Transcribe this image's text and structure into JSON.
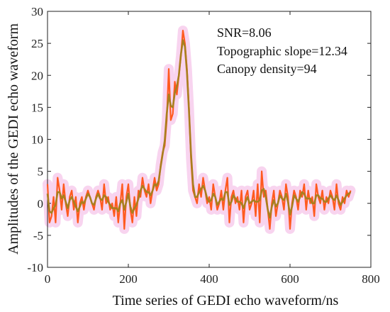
{
  "chart_data": {
    "type": "line",
    "title": "",
    "xlabel": "Time series of GEDI echo waveform/ns",
    "ylabel": "Amplitudes of the GEDI echo waveform",
    "xlim": [
      0,
      800
    ],
    "ylim": [
      -10,
      30
    ],
    "xticks": [
      0,
      200,
      400,
      600,
      800
    ],
    "yticks": [
      -10,
      -5,
      0,
      5,
      10,
      15,
      20,
      25,
      30
    ],
    "grid": false,
    "annotations": [
      "SNR=8.06",
      "Topographic slope=12.34",
      "Canopy density=94"
    ],
    "colors": {
      "raw": "#ff5a1f",
      "smoothed": "#a97f1e",
      "band": "#f5c6ea"
    },
    "series": [
      {
        "x": [
          0,
          5,
          10,
          15,
          20,
          25,
          30,
          35,
          40,
          45,
          50,
          55,
          60,
          65,
          70,
          75,
          80,
          85,
          90,
          95,
          100,
          105,
          110,
          115,
          120,
          125,
          130,
          135,
          140,
          145,
          150,
          155,
          160,
          165,
          170,
          175,
          180,
          185,
          190,
          195,
          200,
          205,
          210,
          215,
          220,
          225,
          230,
          235,
          240,
          245,
          250,
          255,
          260,
          265,
          270,
          275,
          280,
          285,
          290,
          295,
          300,
          305,
          310,
          315,
          320,
          325,
          330,
          335,
          340,
          345,
          350,
          355,
          360,
          365,
          370,
          375,
          380,
          385,
          390,
          395,
          400,
          405,
          410,
          415,
          420,
          425,
          430,
          435,
          440,
          445,
          450,
          455,
          460,
          465,
          470,
          475,
          480,
          485,
          490,
          495,
          500,
          505,
          510,
          515,
          520,
          525,
          530,
          535,
          540,
          545,
          550,
          555,
          560,
          565,
          570,
          575,
          580,
          585,
          590,
          595,
          600,
          605,
          610,
          615,
          620,
          625,
          630,
          635,
          640,
          645,
          650,
          655,
          660,
          665,
          670,
          675,
          680,
          685,
          690,
          695,
          700,
          705,
          710,
          715,
          720,
          725,
          730,
          735,
          740,
          745,
          750
        ],
        "y": [
          3,
          -3,
          -2,
          1,
          -3,
          4,
          2,
          -1,
          3,
          0,
          -2,
          1,
          2,
          -1,
          1,
          -3,
          0,
          1,
          -1,
          1,
          2,
          1,
          0,
          -1,
          1,
          2,
          1,
          -1,
          3,
          0,
          1,
          -1,
          0,
          -2,
          1,
          -3,
          0,
          3,
          -4,
          1,
          3,
          -1,
          -3,
          1,
          -2,
          2,
          1,
          4,
          2,
          1,
          3,
          0,
          2,
          4,
          2,
          3,
          6,
          8,
          9,
          13,
          21,
          13,
          14,
          19,
          17,
          20,
          23,
          27,
          25,
          21,
          15,
          7,
          2,
          1,
          0,
          3,
          1,
          4,
          2,
          0,
          1,
          -1,
          3,
          1,
          -1,
          0,
          2,
          -1,
          2,
          4,
          -3,
          1,
          2,
          0,
          1,
          -1,
          2,
          -3,
          1,
          2,
          -1,
          0,
          2,
          -2,
          3,
          -3,
          5,
          1,
          2,
          -1,
          -4,
          0,
          2,
          -2,
          0,
          2,
          1,
          -1,
          3,
          1,
          -4,
          0,
          2,
          1,
          -1,
          2,
          1,
          3,
          -1,
          2,
          0,
          1,
          -2,
          3,
          1,
          0,
          2,
          -1,
          1,
          0,
          2,
          1,
          -1,
          3,
          0,
          -1,
          1,
          0,
          2,
          1,
          2
        ]
      }
    ]
  }
}
